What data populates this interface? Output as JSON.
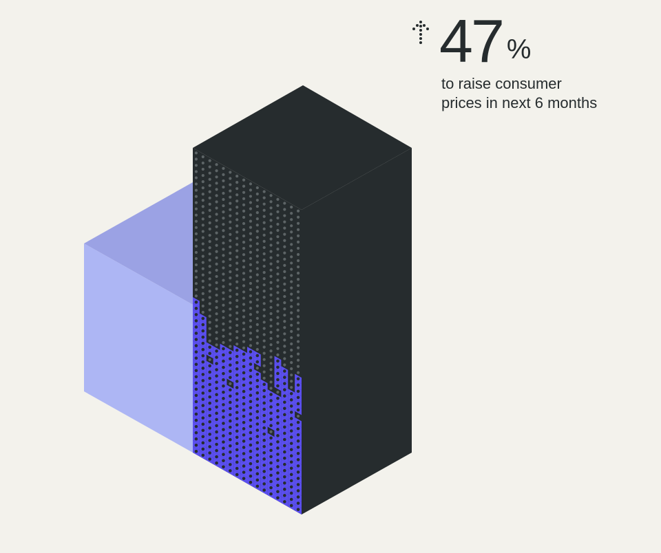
{
  "stat": {
    "value": "47",
    "unit": "%",
    "description_line1": "to raise consumer",
    "description_line2": "prices in next 6 months",
    "icon": "dotted-up-arrow-icon",
    "fill_fraction": 0.47
  },
  "colors": {
    "background": "#f3f2ec",
    "dark": "#262c2e",
    "accent": "#5b4ff0",
    "light_cube": "#a9b2f3"
  }
}
